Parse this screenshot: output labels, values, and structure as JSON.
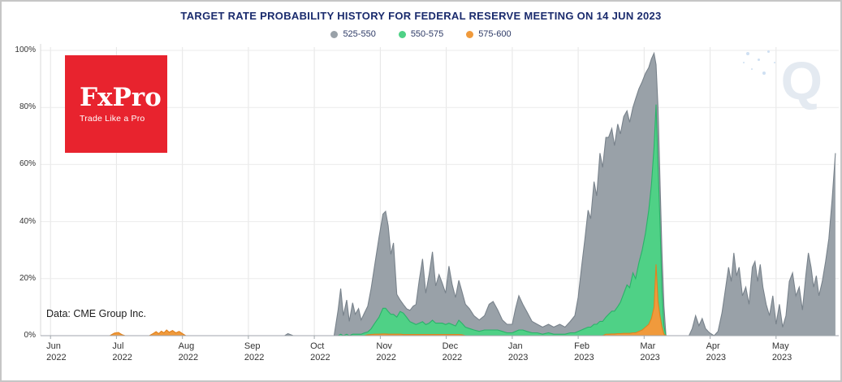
{
  "source_note": "Data: CME Group Inc.",
  "logo": {
    "brand": "FxPro",
    "tagline": "Trade Like a Pro",
    "bg": "#e8232e"
  },
  "watermark": {
    "letter": "Q"
  },
  "chart_data": {
    "type": "area",
    "stacked": true,
    "title": "TARGET RATE PROBABILITY HISTORY FOR FEDERAL RESERVE MEETING ON 14 JUN 2023",
    "subtitle": "",
    "legend_position": "top-center",
    "grid": true,
    "stack_order_bottom_to_top": [
      "575-600",
      "550-575",
      "525-550"
    ],
    "series": [
      {
        "name": "525-550",
        "fill": "#99a1a8",
        "stroke": "#78828b"
      },
      {
        "name": "550-575",
        "fill": "#4fd186",
        "stroke": "#2ab269"
      },
      {
        "name": "575-600",
        "fill": "#f09a3c",
        "stroke": "#e0821f"
      }
    ],
    "y_axis": {
      "range": [
        0,
        100
      ],
      "unit": "%",
      "ticks": [
        {
          "v": 0,
          "label": "0%"
        },
        {
          "v": 20,
          "label": "20%"
        },
        {
          "v": 40,
          "label": "40%"
        },
        {
          "v": 60,
          "label": "60%"
        },
        {
          "v": 80,
          "label": "80%"
        },
        {
          "v": 100,
          "label": "100%"
        }
      ]
    },
    "x_axis": {
      "range": [
        -0.15,
        11.95
      ],
      "unit": "months since Jun 2022",
      "ticks": [
        {
          "t": 0,
          "month": "Jun",
          "year": "2022"
        },
        {
          "t": 1,
          "month": "Jul",
          "year": "2022"
        },
        {
          "t": 2,
          "month": "Aug",
          "year": "2022"
        },
        {
          "t": 3,
          "month": "Sep",
          "year": "2022"
        },
        {
          "t": 4,
          "month": "Oct",
          "year": "2022"
        },
        {
          "t": 5,
          "month": "Nov",
          "year": "2022"
        },
        {
          "t": 6,
          "month": "Dec",
          "year": "2022"
        },
        {
          "t": 7,
          "month": "Jan",
          "year": "2023"
        },
        {
          "t": 8,
          "month": "Feb",
          "year": "2023"
        },
        {
          "t": 9,
          "month": "Mar",
          "year": "2023"
        },
        {
          "t": 10,
          "month": "Apr",
          "year": "2023"
        },
        {
          "t": 11,
          "month": "May",
          "year": "2023"
        }
      ]
    },
    "columns": [
      "t",
      "525-550",
      "550-575",
      "575-600"
    ],
    "points": [
      [
        -0.15,
        0,
        0,
        0
      ],
      [
        0.9,
        0,
        0,
        0
      ],
      [
        0.97,
        0,
        0,
        0.9
      ],
      [
        1.03,
        0,
        0,
        1.1
      ],
      [
        1.08,
        0,
        0,
        0.4
      ],
      [
        1.13,
        0,
        0,
        0
      ],
      [
        1.5,
        0,
        0,
        0
      ],
      [
        1.56,
        0,
        0,
        0.8
      ],
      [
        1.6,
        0,
        0,
        1.4
      ],
      [
        1.64,
        0,
        0,
        0.7
      ],
      [
        1.68,
        0,
        0,
        1.6
      ],
      [
        1.72,
        0,
        0,
        1.0
      ],
      [
        1.76,
        0,
        0,
        2.0
      ],
      [
        1.8,
        0,
        0,
        1.2
      ],
      [
        1.85,
        0,
        0,
        1.8
      ],
      [
        1.9,
        0,
        0,
        1.0
      ],
      [
        1.95,
        0,
        0,
        1.5
      ],
      [
        2.0,
        0,
        0,
        0.7
      ],
      [
        2.05,
        0,
        0,
        0
      ],
      [
        3.55,
        0,
        0,
        0
      ],
      [
        3.6,
        0.7,
        0,
        0
      ],
      [
        3.68,
        0,
        0,
        0
      ],
      [
        4.3,
        0,
        0,
        0
      ],
      [
        4.36,
        9,
        0,
        0
      ],
      [
        4.4,
        16,
        0.5,
        0
      ],
      [
        4.44,
        7,
        0,
        0
      ],
      [
        4.49,
        12,
        0.5,
        0
      ],
      [
        4.53,
        5,
        0,
        0
      ],
      [
        4.58,
        11,
        0.5,
        0
      ],
      [
        4.62,
        7,
        0.5,
        0
      ],
      [
        4.67,
        9,
        0.5,
        0
      ],
      [
        4.71,
        5,
        0.5,
        0
      ],
      [
        4.76,
        7,
        1,
        0
      ],
      [
        4.81,
        9,
        1,
        0.3
      ],
      [
        4.86,
        14,
        2,
        0.4
      ],
      [
        4.92,
        21,
        4,
        0.5
      ],
      [
        4.98,
        28,
        6,
        0.5
      ],
      [
        5.04,
        33,
        9,
        0.6
      ],
      [
        5.08,
        34,
        9,
        0.6
      ],
      [
        5.12,
        30,
        8,
        0.5
      ],
      [
        5.16,
        21,
        7,
        0.5
      ],
      [
        5.2,
        25,
        7,
        0.5
      ],
      [
        5.25,
        8,
        6,
        0.5
      ],
      [
        5.3,
        4,
        8,
        0.5
      ],
      [
        5.35,
        3,
        7.5,
        0.4
      ],
      [
        5.4,
        3,
        6,
        0.4
      ],
      [
        5.45,
        4,
        4.5,
        0.4
      ],
      [
        5.5,
        6,
        4,
        0.4
      ],
      [
        5.54,
        7,
        3.5,
        0.4
      ],
      [
        5.59,
        15,
        4,
        0.4
      ],
      [
        5.64,
        22,
        4.5,
        0.4
      ],
      [
        5.69,
        11,
        3.5,
        0.4
      ],
      [
        5.74,
        17,
        4,
        0.4
      ],
      [
        5.79,
        24,
        5,
        0.4
      ],
      [
        5.84,
        13,
        4,
        0.4
      ],
      [
        5.89,
        17,
        4,
        0.4
      ],
      [
        5.94,
        14,
        4,
        0.4
      ],
      [
        5.99,
        11,
        3.5,
        0.4
      ],
      [
        6.04,
        20,
        4,
        0.4
      ],
      [
        6.09,
        14,
        3.5,
        0.4
      ],
      [
        6.14,
        10,
        3,
        0.4
      ],
      [
        6.19,
        14,
        5,
        0.4
      ],
      [
        6.24,
        11,
        4,
        0.3
      ],
      [
        6.29,
        8,
        3,
        0
      ],
      [
        6.35,
        7,
        2.5,
        0
      ],
      [
        6.42,
        5,
        2,
        0
      ],
      [
        6.5,
        4,
        1.5,
        0
      ],
      [
        6.58,
        5,
        2,
        0
      ],
      [
        6.65,
        9,
        2,
        0
      ],
      [
        6.71,
        10,
        2,
        0
      ],
      [
        6.78,
        7,
        2,
        0
      ],
      [
        6.85,
        4,
        1.5,
        0
      ],
      [
        6.92,
        3,
        1,
        0
      ],
      [
        7.0,
        3,
        1,
        0
      ],
      [
        7.05,
        8,
        1.5,
        0
      ],
      [
        7.1,
        12,
        2,
        0
      ],
      [
        7.16,
        9,
        2,
        0
      ],
      [
        7.22,
        7,
        1.5,
        0
      ],
      [
        7.3,
        4,
        1,
        0
      ],
      [
        7.38,
        3,
        1,
        0
      ],
      [
        7.46,
        2.5,
        0.5,
        0
      ],
      [
        7.55,
        3,
        1,
        0
      ],
      [
        7.63,
        2.5,
        0.5,
        0
      ],
      [
        7.72,
        3.5,
        0.5,
        0
      ],
      [
        7.8,
        2.5,
        0.5,
        0
      ],
      [
        7.88,
        4,
        1,
        0
      ],
      [
        7.95,
        6,
        1,
        0
      ],
      [
        8.0,
        12,
        1.5,
        0
      ],
      [
        8.05,
        22,
        2,
        0
      ],
      [
        8.1,
        31,
        2.5,
        0
      ],
      [
        8.15,
        41,
        3,
        0
      ],
      [
        8.19,
        38,
        3,
        0
      ],
      [
        8.24,
        50,
        4,
        0
      ],
      [
        8.28,
        45,
        4,
        0
      ],
      [
        8.33,
        59,
        5,
        0
      ],
      [
        8.37,
        54,
        5,
        0
      ],
      [
        8.42,
        63,
        6,
        0.5
      ],
      [
        8.46,
        62,
        7,
        0.5
      ],
      [
        8.51,
        64,
        8,
        0.6
      ],
      [
        8.55,
        58,
        8,
        0.6
      ],
      [
        8.6,
        64,
        9.5,
        0.7
      ],
      [
        8.64,
        59,
        11,
        0.7
      ],
      [
        8.69,
        62,
        14,
        0.8
      ],
      [
        8.74,
        61,
        17,
        0.8
      ],
      [
        8.78,
        58,
        16,
        0.8
      ],
      [
        8.83,
        58,
        21,
        1
      ],
      [
        8.87,
        63,
        19,
        1
      ],
      [
        8.92,
        61,
        24,
        1.5
      ],
      [
        8.97,
        59,
        28,
        2
      ],
      [
        9.02,
        56,
        33,
        3
      ],
      [
        9.07,
        50,
        40,
        4
      ],
      [
        9.11,
        44,
        47,
        6
      ],
      [
        9.15,
        33,
        56,
        10
      ],
      [
        9.18,
        14,
        56,
        25
      ],
      [
        9.21,
        20,
        48,
        12
      ],
      [
        9.24,
        15,
        33,
        7
      ],
      [
        9.27,
        13,
        13,
        3
      ],
      [
        9.3,
        7,
        3,
        0.5
      ],
      [
        9.33,
        0,
        0,
        0
      ],
      [
        9.68,
        0,
        0,
        0
      ],
      [
        9.73,
        2.5,
        0,
        0
      ],
      [
        9.78,
        7,
        0,
        0
      ],
      [
        9.83,
        3.5,
        0,
        0
      ],
      [
        9.88,
        6,
        0,
        0
      ],
      [
        9.93,
        2.5,
        0,
        0
      ],
      [
        9.99,
        1,
        0,
        0
      ],
      [
        10.06,
        0,
        0,
        0
      ],
      [
        10.12,
        1.5,
        0,
        0
      ],
      [
        10.18,
        8,
        0,
        0
      ],
      [
        10.23,
        16,
        0,
        0
      ],
      [
        10.28,
        24,
        0,
        0
      ],
      [
        10.32,
        19,
        0,
        0
      ],
      [
        10.36,
        29,
        0,
        0
      ],
      [
        10.4,
        21,
        0,
        0
      ],
      [
        10.44,
        24,
        0,
        0
      ],
      [
        10.49,
        14,
        0,
        0
      ],
      [
        10.54,
        17,
        0,
        0
      ],
      [
        10.59,
        11,
        0,
        0
      ],
      [
        10.64,
        24,
        0,
        0
      ],
      [
        10.68,
        26,
        0,
        0
      ],
      [
        10.72,
        19,
        0,
        0
      ],
      [
        10.76,
        25,
        0,
        0
      ],
      [
        10.8,
        17,
        0,
        0
      ],
      [
        10.85,
        11,
        0,
        0
      ],
      [
        10.9,
        7,
        0,
        0
      ],
      [
        10.95,
        14,
        0,
        0
      ],
      [
        11.0,
        4,
        0,
        0
      ],
      [
        11.05,
        11,
        0,
        0
      ],
      [
        11.1,
        3,
        0,
        0
      ],
      [
        11.15,
        7,
        0,
        0
      ],
      [
        11.2,
        19,
        0,
        0
      ],
      [
        11.25,
        22,
        0,
        0
      ],
      [
        11.3,
        14,
        0,
        0
      ],
      [
        11.35,
        17,
        0,
        0
      ],
      [
        11.4,
        9,
        0,
        0
      ],
      [
        11.45,
        21,
        0,
        0
      ],
      [
        11.49,
        29,
        0,
        0
      ],
      [
        11.53,
        24,
        0,
        0
      ],
      [
        11.57,
        17,
        0,
        0
      ],
      [
        11.61,
        21,
        0,
        0
      ],
      [
        11.65,
        14,
        0,
        0
      ],
      [
        11.7,
        19,
        0,
        0
      ],
      [
        11.75,
        26,
        0,
        0
      ],
      [
        11.8,
        34,
        0,
        0
      ],
      [
        11.85,
        48,
        0,
        0
      ],
      [
        11.9,
        64,
        0,
        0
      ]
    ]
  }
}
